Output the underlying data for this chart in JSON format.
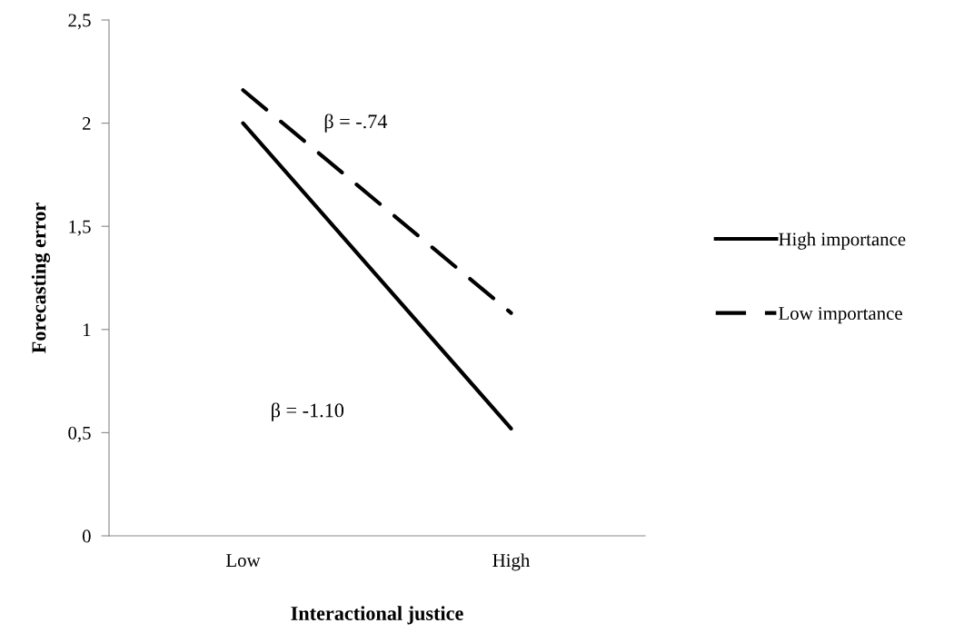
{
  "chart_data": {
    "type": "line",
    "xlabel": "Interactional justice",
    "ylabel": "Forecasting error",
    "categories": [
      "Low",
      "High"
    ],
    "series": [
      {
        "name": "High importance",
        "color": "#000000",
        "values": [
          2.0,
          0.52
        ],
        "line_style": "solid"
      },
      {
        "name": "Low importance",
        "color": "#000000",
        "values": [
          2.16,
          1.08
        ],
        "line_style": "dashed"
      }
    ],
    "ylim": [
      0,
      2.5
    ],
    "yticks": [
      0,
      {
        "value": 0.5,
        "label": "0,5"
      },
      1,
      {
        "value": 1.5,
        "label": "1,5"
      },
      2,
      {
        "value": 2.5,
        "label": "2,5"
      }
    ],
    "annotations": [
      "β = -.74",
      "β = -1.10"
    ],
    "grid": false,
    "legend": "right",
    "marker": "none"
  }
}
